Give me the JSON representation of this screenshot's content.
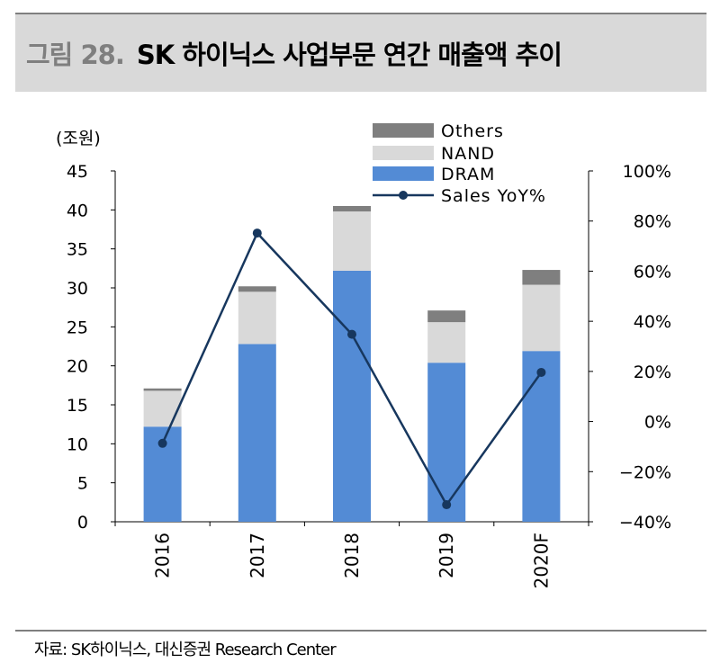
{
  "title": {
    "number": "그림 28.",
    "text": "SK 하이닉스 사업부문 연간 매출액 추이"
  },
  "source": "자료: SK하이닉스, 대신증권 Research Center",
  "chart_data": {
    "type": "bar",
    "stacked": true,
    "title": "SK 하이닉스 사업부문 연간 매출액 추이",
    "ylabel": "(조원)",
    "categories": [
      "2016",
      "2017",
      "2018",
      "2019",
      "2020F"
    ],
    "ylim": [
      0,
      45
    ],
    "yticks": [
      "0",
      "5",
      "10",
      "15",
      "20",
      "25",
      "30",
      "35",
      "40",
      "45"
    ],
    "y2lim": [
      -40,
      100
    ],
    "y2ticks": [
      "-40%",
      "-20%",
      "0%",
      "20%",
      "40%",
      "60%",
      "80%",
      "100%"
    ],
    "legend_position": "top-right",
    "series": [
      {
        "name": "DRAM",
        "type": "bar",
        "axis": "left",
        "color": "#538bd5",
        "values": [
          12.2,
          22.8,
          32.2,
          20.4,
          21.9
        ]
      },
      {
        "name": "NAND",
        "type": "bar",
        "axis": "left",
        "color": "#d9d9d9",
        "values": [
          4.6,
          6.7,
          7.6,
          5.2,
          8.5
        ]
      },
      {
        "name": "Others",
        "type": "bar",
        "axis": "left",
        "color": "#7f7f7f",
        "values": [
          0.3,
          0.7,
          0.7,
          1.5,
          1.9
        ]
      },
      {
        "name": "Sales YoY%",
        "type": "line",
        "axis": "right",
        "color": "#17375e",
        "values": [
          -8.7,
          75.2,
          34.8,
          -33.2,
          19.6
        ]
      }
    ],
    "legend": [
      "Others",
      "NAND",
      "DRAM",
      "Sales YoY%"
    ]
  }
}
